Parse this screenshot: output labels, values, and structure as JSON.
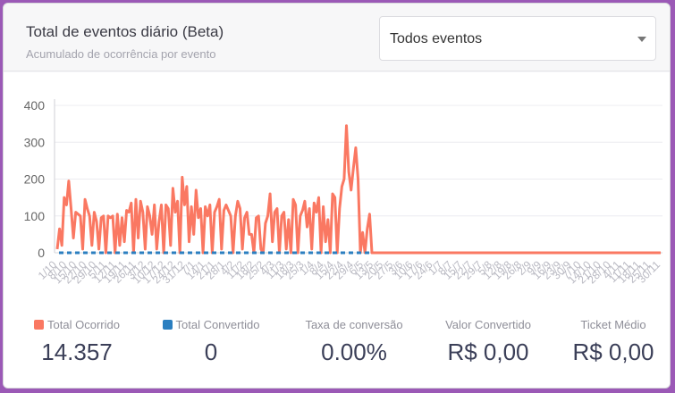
{
  "header": {
    "title": "Total de eventos diário (Beta)",
    "subtitle": "Acumulado de ocorrência por evento",
    "dropdown": {
      "selected": "Todos eventos"
    }
  },
  "chart_data": {
    "type": "line",
    "ylim": [
      0,
      400
    ],
    "yticks": [
      0,
      100,
      200,
      300,
      400
    ],
    "x_tick_labels": [
      "1/10",
      "8/10",
      "15/10",
      "22/10",
      "29/10",
      "5/11",
      "12/11",
      "19/11",
      "26/11",
      "3/12",
      "10/12",
      "17/12",
      "24/12",
      "31/12",
      "7/1",
      "14/1",
      "21/1",
      "28/1",
      "4/2",
      "11/2",
      "18/2",
      "25/2",
      "4/3",
      "11/3",
      "18/3",
      "25/3",
      "1/4",
      "8/4",
      "15/4",
      "22/4",
      "29/4",
      "6/5",
      "13/5",
      "20/5",
      "27/5",
      "3/6",
      "10/6",
      "17/6",
      "24/6",
      "1/7",
      "8/7",
      "15/7",
      "22/7",
      "29/7",
      "5/8",
      "12/8",
      "19/8",
      "26/8",
      "2/9",
      "9/9",
      "16/9",
      "23/9",
      "30/9",
      "7/10",
      "14/10",
      "21/10",
      "28/10",
      "4/11",
      "11/11",
      "18/11",
      "25/11",
      "30/11"
    ],
    "series": [
      {
        "name": "Total Ocorrido",
        "color": "#fa7862",
        "values": [
          10,
          65,
          20,
          150,
          130,
          195,
          120,
          40,
          110,
          105,
          100,
          10,
          145,
          120,
          100,
          20,
          110,
          85,
          10,
          95,
          100,
          0,
          100,
          95,
          100,
          0,
          105,
          20,
          95,
          30,
          115,
          110,
          135,
          0,
          145,
          40,
          140,
          110,
          10,
          125,
          100,
          50,
          130,
          10,
          85,
          130,
          0,
          130,
          120,
          20,
          175,
          110,
          140,
          0,
          205,
          130,
          180,
          30,
          125,
          50,
          170,
          95,
          120,
          0,
          125,
          100,
          130,
          0,
          110,
          125,
          145,
          10,
          115,
          130,
          115,
          100,
          0,
          100,
          140,
          120,
          10,
          95,
          110,
          50,
          50,
          0,
          95,
          100,
          10,
          0,
          80,
          100,
          160,
          30,
          110,
          120,
          0,
          100,
          110,
          10,
          90,
          0,
          145,
          130,
          0,
          100,
          115,
          140,
          70,
          120,
          10,
          135,
          110,
          150,
          0,
          125,
          30,
          90,
          0,
          160,
          150,
          0,
          120,
          180,
          200,
          345,
          220,
          170,
          230,
          285,
          200,
          0,
          55,
          0,
          65,
          105,
          0
        ]
      },
      {
        "name": "Total Convertido",
        "color": "#2b7fc0",
        "values": [
          0
        ]
      }
    ]
  },
  "stats": [
    {
      "label": "Total Ocorrido",
      "value": "14.357",
      "color": "#fa7862"
    },
    {
      "label": "Total Convertido",
      "value": "0",
      "color": "#2b7fc0"
    },
    {
      "label": "Taxa de conversão",
      "value": "0.00%"
    },
    {
      "label": "Valor Convertido",
      "value": "R$ 0,00"
    },
    {
      "label": "Ticket Médio",
      "value": "R$ 0,00"
    }
  ]
}
